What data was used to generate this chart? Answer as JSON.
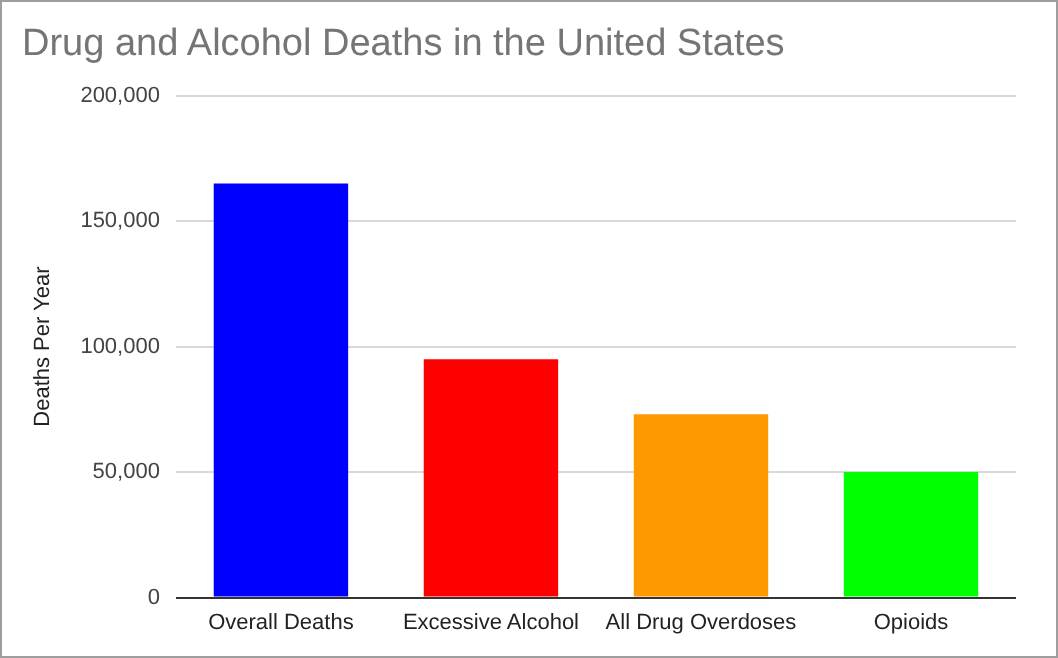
{
  "chart_data": {
    "type": "bar",
    "title": "Drug and Alcohol Deaths in the United States",
    "ylabel": "Deaths Per Year",
    "categories": [
      "Overall Deaths",
      "Excessive Alcohol",
      "All Drug Overdoses",
      "Opioids"
    ],
    "values": [
      165000,
      95000,
      73000,
      50000
    ],
    "colors": [
      "#0000ff",
      "#ff0000",
      "#ff9900",
      "#00ff00"
    ],
    "ylim": [
      0,
      200000
    ],
    "yticks": [
      0,
      {
        "value": 50000,
        "label": "50,000"
      },
      {
        "value": 100000,
        "label": "100,000"
      },
      {
        "value": 150000,
        "label": "150,000"
      },
      {
        "value": 200000,
        "label": "200,000"
      }
    ],
    "grid": "y",
    "legend": false
  }
}
